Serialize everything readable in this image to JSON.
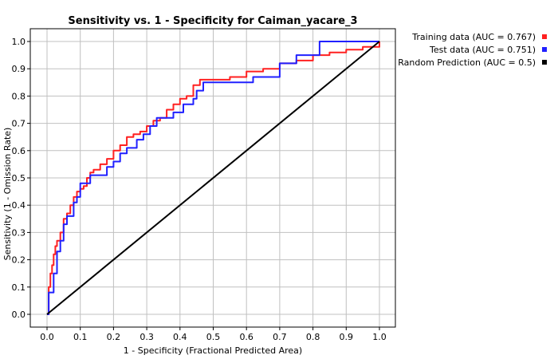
{
  "chart_data": {
    "type": "line",
    "title": "Sensitivity vs. 1 - Specificity for Caiman_yacare_3",
    "xlabel": "1 - Specificity  (Fractional Predicted Area)",
    "ylabel": "Sensitivity (1 - Omission Rate)",
    "xlim": [
      0,
      1
    ],
    "ylim": [
      0,
      1
    ],
    "x_ticks": [
      "0.0",
      "0.1",
      "0.2",
      "0.3",
      "0.4",
      "0.5",
      "0.6",
      "0.7",
      "0.8",
      "0.9",
      "1.0"
    ],
    "y_ticks": [
      "0.0",
      "0.1",
      "0.2",
      "0.3",
      "0.4",
      "0.5",
      "0.6",
      "0.7",
      "0.8",
      "0.9",
      "1.0"
    ],
    "grid": true,
    "legend_position": "outside-top-right",
    "series": [
      {
        "name": "Training data (AUC = 0.767)",
        "color": "#ff2020",
        "x": [
          0,
          0.005,
          0.01,
          0.015,
          0.02,
          0.025,
          0.03,
          0.04,
          0.05,
          0.06,
          0.07,
          0.08,
          0.09,
          0.1,
          0.11,
          0.12,
          0.13,
          0.14,
          0.16,
          0.18,
          0.2,
          0.22,
          0.24,
          0.26,
          0.28,
          0.3,
          0.32,
          0.34,
          0.36,
          0.38,
          0.4,
          0.42,
          0.44,
          0.46,
          0.5,
          0.55,
          0.6,
          0.65,
          0.7,
          0.75,
          0.8,
          0.85,
          0.9,
          0.95,
          1.0
        ],
        "y": [
          0,
          0.1,
          0.15,
          0.18,
          0.22,
          0.25,
          0.27,
          0.3,
          0.35,
          0.37,
          0.4,
          0.43,
          0.45,
          0.46,
          0.47,
          0.5,
          0.52,
          0.53,
          0.55,
          0.57,
          0.6,
          0.62,
          0.65,
          0.66,
          0.67,
          0.69,
          0.71,
          0.72,
          0.75,
          0.77,
          0.79,
          0.8,
          0.84,
          0.86,
          0.86,
          0.87,
          0.89,
          0.9,
          0.92,
          0.93,
          0.95,
          0.96,
          0.97,
          0.98,
          1.0
        ]
      },
      {
        "name": "Test data (AUC = 0.751)",
        "color": "#2020ff",
        "x": [
          0,
          0.005,
          0.02,
          0.03,
          0.04,
          0.05,
          0.06,
          0.08,
          0.09,
          0.1,
          0.12,
          0.13,
          0.15,
          0.18,
          0.2,
          0.22,
          0.24,
          0.27,
          0.29,
          0.31,
          0.33,
          0.35,
          0.38,
          0.41,
          0.44,
          0.45,
          0.47,
          0.5,
          0.55,
          0.6,
          0.62,
          0.65,
          0.7,
          0.72,
          0.75,
          0.8,
          0.82,
          0.85,
          0.9,
          0.95,
          1.0
        ],
        "y": [
          0,
          0.08,
          0.15,
          0.23,
          0.27,
          0.33,
          0.36,
          0.41,
          0.43,
          0.48,
          0.48,
          0.51,
          0.51,
          0.54,
          0.56,
          0.59,
          0.61,
          0.64,
          0.66,
          0.69,
          0.72,
          0.72,
          0.74,
          0.77,
          0.79,
          0.82,
          0.85,
          0.85,
          0.85,
          0.85,
          0.87,
          0.87,
          0.92,
          0.92,
          0.95,
          0.95,
          1.0,
          1.0,
          1.0,
          1.0,
          1.0
        ]
      },
      {
        "name": "Random Prediction (AUC = 0.5)",
        "color": "#000000",
        "x": [
          0,
          1
        ],
        "y": [
          0,
          1
        ]
      }
    ]
  }
}
